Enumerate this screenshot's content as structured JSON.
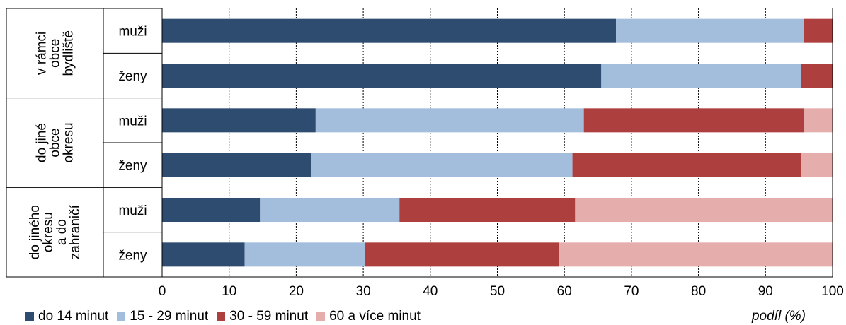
{
  "chart_data": {
    "type": "bar",
    "orientation": "horizontal",
    "stacked": true,
    "groups": [
      {
        "label": "v rámci obce bydliště",
        "lines": [
          "v rámci",
          "obce",
          "bydliště"
        ]
      },
      {
        "label": "do jiné obce okresu",
        "lines": [
          "do jiné",
          "obce",
          "okresu"
        ]
      },
      {
        "label": "do jiného okresu a do zahraničí",
        "lines": [
          "do jiného",
          "okresu",
          "a do",
          "zahraničí"
        ]
      }
    ],
    "categories": [
      "muži",
      "ženy",
      "muži",
      "ženy",
      "muži",
      "ženy"
    ],
    "category_group": [
      0,
      0,
      1,
      1,
      2,
      2
    ],
    "series": [
      {
        "name": "do 14 minut",
        "color": "#2e4b70",
        "values": [
          67.7,
          65.5,
          22.9,
          22.3,
          14.6,
          12.3
        ]
      },
      {
        "name": "15 - 29 minut",
        "color": "#a3bddc",
        "values": [
          28.0,
          29.8,
          40.0,
          38.9,
          20.8,
          18.0
        ]
      },
      {
        "name": "30 - 59 minut",
        "color": "#ad3f3e",
        "values": [
          4.3,
          4.7,
          32.9,
          34.1,
          26.2,
          28.9
        ]
      },
      {
        "name": "60 a více minut",
        "color": "#e6adad",
        "values": [
          0.0,
          0.0,
          4.2,
          4.7,
          38.4,
          40.8
        ]
      }
    ],
    "xlim": [
      0,
      100
    ],
    "xticks": [
      "0",
      "10",
      "20",
      "30",
      "40",
      "50",
      "60",
      "70",
      "80",
      "90",
      "100"
    ],
    "xlabel": "podíl (%)",
    "grid": "vertical dotted",
    "legend_position": "bottom"
  }
}
